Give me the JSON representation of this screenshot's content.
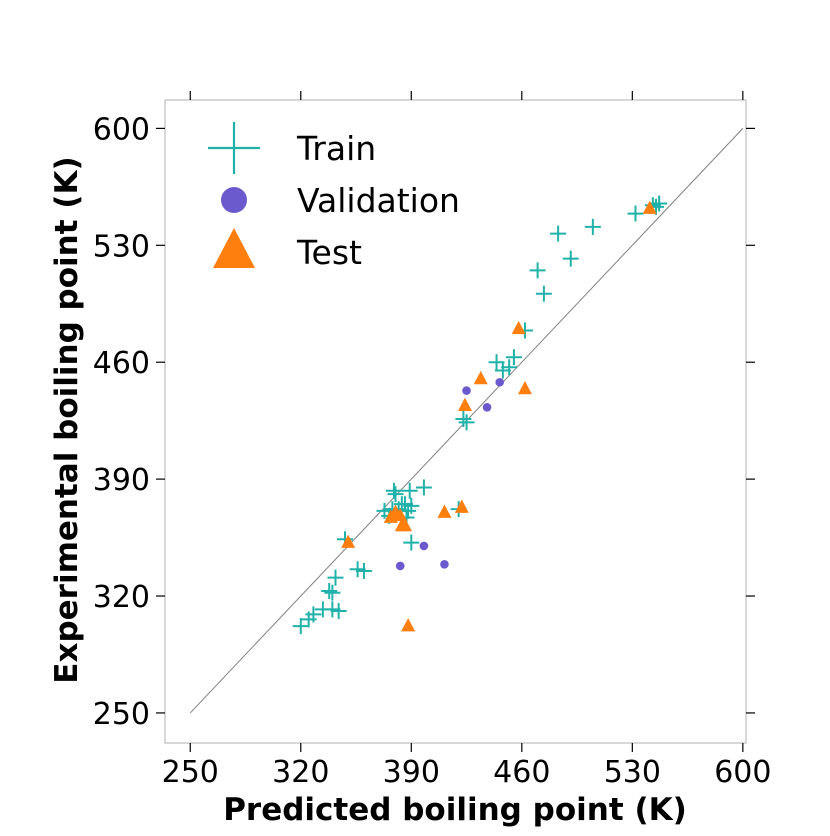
{
  "chart_data": {
    "type": "scatter",
    "title": "",
    "xlabel": "Predicted boiling point (K)",
    "ylabel": "Experimental boiling point (K)",
    "xlim": [
      234,
      602
    ],
    "ylim": [
      232,
      617
    ],
    "xticks": [
      250,
      320,
      390,
      460,
      530,
      600
    ],
    "yticks": [
      250,
      320,
      390,
      460,
      530,
      600
    ],
    "identity_line": [
      [
        250,
        250
      ],
      [
        600,
        600
      ]
    ],
    "legend_position": "upper-left",
    "colors": {
      "train": "#20b2aa",
      "validation": "#6a5acd",
      "test": "#ff7f0e",
      "identity": "#808080"
    },
    "series": [
      {
        "name": "Train",
        "marker": "plus",
        "points": [
          [
            320,
            302
          ],
          [
            328,
            309
          ],
          [
            325,
            306
          ],
          [
            340,
            312
          ],
          [
            334,
            312
          ],
          [
            344,
            311
          ],
          [
            340,
            322
          ],
          [
            338,
            323
          ],
          [
            342,
            331
          ],
          [
            356,
            336
          ],
          [
            360,
            335
          ],
          [
            348,
            354
          ],
          [
            373,
            371
          ],
          [
            376,
            368
          ],
          [
            378,
            372
          ],
          [
            379,
            383
          ],
          [
            380,
            381
          ],
          [
            382,
            372
          ],
          [
            384,
            375
          ],
          [
            386,
            375
          ],
          [
            388,
            371
          ],
          [
            389,
            383
          ],
          [
            390,
            374
          ],
          [
            387,
            367
          ],
          [
            390,
            352
          ],
          [
            398,
            385
          ],
          [
            420,
            372
          ],
          [
            423,
            426
          ],
          [
            425,
            424
          ],
          [
            444,
            460
          ],
          [
            448,
            455
          ],
          [
            452,
            457
          ],
          [
            455,
            463
          ],
          [
            462,
            479
          ],
          [
            470,
            515
          ],
          [
            474,
            501
          ],
          [
            483,
            537
          ],
          [
            491,
            522
          ],
          [
            505,
            541
          ],
          [
            532,
            549
          ],
          [
            543,
            554
          ],
          [
            545,
            553
          ],
          [
            547,
            555
          ]
        ]
      },
      {
        "name": "Validation",
        "marker": "circle",
        "points": [
          [
            383,
            338
          ],
          [
            398,
            350
          ],
          [
            411,
            339
          ],
          [
            425,
            443
          ],
          [
            438,
            433
          ],
          [
            446,
            448
          ]
        ]
      },
      {
        "name": "Test",
        "marker": "triangle",
        "points": [
          [
            350,
            352
          ],
          [
            377,
            367
          ],
          [
            380,
            370
          ],
          [
            383,
            368
          ],
          [
            384,
            362
          ],
          [
            386,
            362
          ],
          [
            388,
            302
          ],
          [
            411,
            370
          ],
          [
            422,
            373
          ],
          [
            424,
            434
          ],
          [
            434,
            450
          ],
          [
            458,
            480
          ],
          [
            462,
            444
          ],
          [
            541,
            552
          ]
        ]
      }
    ]
  }
}
